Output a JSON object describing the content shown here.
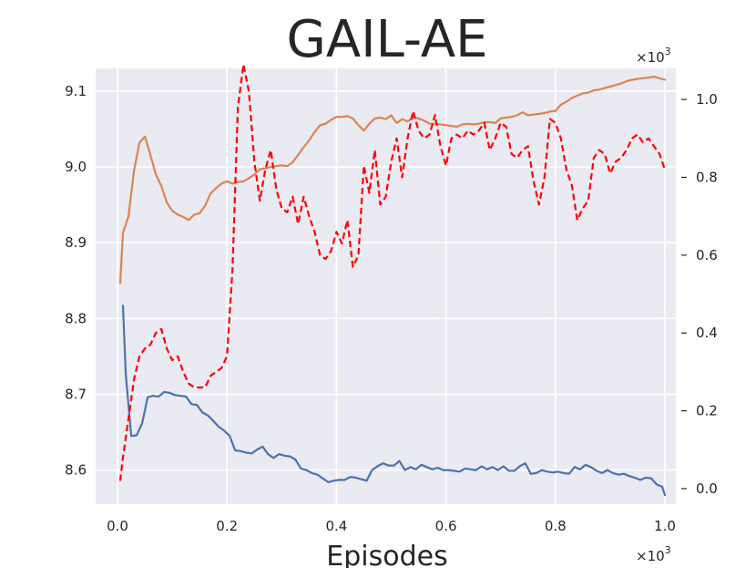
{
  "chart_data": {
    "type": "line",
    "title": "GAIL-AE",
    "xlabel": "Episodes",
    "x_multiplier": "×10",
    "y2_multiplier": "×10",
    "multiplier_exponent": "3",
    "xlim": [
      -0.04,
      1.02
    ],
    "ylim": [
      8.555,
      9.13
    ],
    "y2lim": [
      -0.04,
      1.08
    ],
    "xticks": [
      0.0,
      0.2,
      0.4,
      0.6,
      0.8,
      1.0
    ],
    "xtick_labels": [
      "0.0",
      "0.2",
      "0.4",
      "0.6",
      "0.8",
      "1.0"
    ],
    "yticks": [
      8.6,
      8.7,
      8.8,
      8.9,
      9.0,
      9.1
    ],
    "ytick_labels": [
      "8.6",
      "8.7",
      "8.8",
      "8.9",
      "9.0",
      "9.1"
    ],
    "y2ticks": [
      0.0,
      0.2,
      0.4,
      0.6,
      0.8,
      1.0
    ],
    "y2tick_labels": [
      "0.0",
      "0.2",
      "0.4",
      "0.6",
      "0.8",
      "1.0"
    ],
    "grid": true,
    "background": "#eaeaf2",
    "series": [
      {
        "color": "#4c72b0",
        "axis": "left",
        "style": "solid",
        "x": [
          0.01,
          0.015,
          0.025,
          0.035,
          0.045,
          0.055,
          0.065,
          0.075,
          0.085,
          0.095,
          0.105,
          0.115,
          0.125,
          0.135,
          0.145,
          0.155,
          0.165,
          0.175,
          0.185,
          0.195,
          0.205,
          0.215,
          0.225,
          0.235,
          0.245,
          0.255,
          0.265,
          0.275,
          0.285,
          0.295,
          0.305,
          0.315,
          0.325,
          0.335,
          0.345,
          0.355,
          0.365,
          0.375,
          0.385,
          0.395,
          0.405,
          0.415,
          0.425,
          0.435,
          0.445,
          0.455,
          0.465,
          0.475,
          0.485,
          0.495,
          0.505,
          0.515,
          0.525,
          0.535,
          0.545,
          0.555,
          0.565,
          0.575,
          0.585,
          0.595,
          0.605,
          0.615,
          0.625,
          0.635,
          0.645,
          0.655,
          0.665,
          0.675,
          0.685,
          0.695,
          0.705,
          0.715,
          0.725,
          0.735,
          0.745,
          0.755,
          0.765,
          0.775,
          0.785,
          0.795,
          0.805,
          0.815,
          0.825,
          0.835,
          0.845,
          0.855,
          0.865,
          0.875,
          0.885,
          0.895,
          0.905,
          0.915,
          0.925,
          0.935,
          0.945,
          0.955,
          0.965,
          0.975,
          0.985,
          0.995,
          1.0
        ],
        "y": [
          8.817,
          8.726,
          8.645,
          8.646,
          8.662,
          8.696,
          8.698,
          8.697,
          8.703,
          8.702,
          8.699,
          8.698,
          8.697,
          8.687,
          8.686,
          8.676,
          8.672,
          8.665,
          8.657,
          8.652,
          8.645,
          8.626,
          8.625,
          8.623,
          8.622,
          8.627,
          8.631,
          8.621,
          8.616,
          8.621,
          8.619,
          8.618,
          8.614,
          8.602,
          8.6,
          8.596,
          8.594,
          8.589,
          8.584,
          8.586,
          8.587,
          8.587,
          8.591,
          8.59,
          8.588,
          8.586,
          8.6,
          8.605,
          8.609,
          8.606,
          8.606,
          8.612,
          8.6,
          8.604,
          8.601,
          8.607,
          8.604,
          8.601,
          8.603,
          8.6,
          8.6,
          8.599,
          8.598,
          8.602,
          8.601,
          8.6,
          8.605,
          8.601,
          8.604,
          8.6,
          8.605,
          8.599,
          8.599,
          8.605,
          8.609,
          8.595,
          8.596,
          8.6,
          8.598,
          8.597,
          8.598,
          8.596,
          8.595,
          8.604,
          8.601,
          8.607,
          8.604,
          8.599,
          8.596,
          8.6,
          8.596,
          8.594,
          8.595,
          8.592,
          8.59,
          8.587,
          8.59,
          8.589,
          8.581,
          8.578,
          8.567
        ]
      },
      {
        "color": "#dd8452",
        "axis": "left",
        "style": "solid",
        "x": [
          0.005,
          0.01,
          0.02,
          0.03,
          0.04,
          0.05,
          0.06,
          0.07,
          0.08,
          0.09,
          0.1,
          0.11,
          0.12,
          0.13,
          0.14,
          0.15,
          0.16,
          0.17,
          0.18,
          0.19,
          0.2,
          0.21,
          0.22,
          0.23,
          0.24,
          0.25,
          0.26,
          0.27,
          0.28,
          0.29,
          0.3,
          0.31,
          0.32,
          0.33,
          0.34,
          0.35,
          0.36,
          0.37,
          0.38,
          0.39,
          0.4,
          0.41,
          0.42,
          0.43,
          0.44,
          0.45,
          0.46,
          0.47,
          0.48,
          0.49,
          0.5,
          0.51,
          0.52,
          0.53,
          0.54,
          0.55,
          0.56,
          0.57,
          0.58,
          0.59,
          0.6,
          0.61,
          0.62,
          0.63,
          0.64,
          0.65,
          0.66,
          0.67,
          0.68,
          0.69,
          0.7,
          0.71,
          0.72,
          0.73,
          0.74,
          0.75,
          0.76,
          0.77,
          0.78,
          0.79,
          0.8,
          0.81,
          0.82,
          0.83,
          0.84,
          0.85,
          0.86,
          0.87,
          0.88,
          0.89,
          0.9,
          0.91,
          0.92,
          0.93,
          0.94,
          0.95,
          0.96,
          0.97,
          0.98,
          0.99,
          1.0
        ],
        "y": [
          8.847,
          8.913,
          8.935,
          8.995,
          9.032,
          9.04,
          9.016,
          8.99,
          8.975,
          8.953,
          8.942,
          8.937,
          8.934,
          8.93,
          8.937,
          8.939,
          8.949,
          8.965,
          8.972,
          8.978,
          8.981,
          8.978,
          8.98,
          8.981,
          8.985,
          8.99,
          8.997,
          8.998,
          9.0,
          9.001,
          9.002,
          9.001,
          9.006,
          9.016,
          9.026,
          9.035,
          9.046,
          9.055,
          9.057,
          9.062,
          9.066,
          9.066,
          9.067,
          9.064,
          9.055,
          9.048,
          9.057,
          9.064,
          9.065,
          9.063,
          9.068,
          9.058,
          9.063,
          9.06,
          9.065,
          9.064,
          9.061,
          9.057,
          9.057,
          9.056,
          9.055,
          9.054,
          9.053,
          9.056,
          9.057,
          9.056,
          9.057,
          9.059,
          9.059,
          9.058,
          9.064,
          9.065,
          9.066,
          9.068,
          9.072,
          9.068,
          9.069,
          9.07,
          9.071,
          9.073,
          9.074,
          9.082,
          9.086,
          9.091,
          9.094,
          9.097,
          9.098,
          9.101,
          9.102,
          9.104,
          9.106,
          9.108,
          9.11,
          9.113,
          9.115,
          9.116,
          9.117,
          9.118,
          9.119,
          9.117,
          9.115
        ]
      },
      {
        "color": "#ff0000",
        "axis": "right",
        "style": "dashed",
        "x": [
          0.005,
          0.01,
          0.02,
          0.03,
          0.04,
          0.05,
          0.06,
          0.07,
          0.08,
          0.09,
          0.1,
          0.11,
          0.12,
          0.13,
          0.14,
          0.15,
          0.16,
          0.17,
          0.18,
          0.19,
          0.2,
          0.21,
          0.22,
          0.23,
          0.24,
          0.25,
          0.26,
          0.27,
          0.28,
          0.29,
          0.3,
          0.31,
          0.32,
          0.33,
          0.34,
          0.35,
          0.36,
          0.37,
          0.38,
          0.39,
          0.4,
          0.41,
          0.42,
          0.43,
          0.44,
          0.45,
          0.46,
          0.47,
          0.48,
          0.49,
          0.5,
          0.51,
          0.52,
          0.53,
          0.54,
          0.55,
          0.56,
          0.57,
          0.58,
          0.59,
          0.6,
          0.61,
          0.62,
          0.63,
          0.64,
          0.65,
          0.66,
          0.67,
          0.68,
          0.69,
          0.7,
          0.71,
          0.72,
          0.73,
          0.74,
          0.75,
          0.76,
          0.77,
          0.78,
          0.79,
          0.8,
          0.81,
          0.82,
          0.83,
          0.84,
          0.85,
          0.86,
          0.87,
          0.88,
          0.89,
          0.9,
          0.91,
          0.92,
          0.93,
          0.94,
          0.95,
          0.96,
          0.97,
          0.98,
          0.99,
          1.0
        ],
        "y": [
          0.02,
          0.08,
          0.18,
          0.28,
          0.34,
          0.36,
          0.37,
          0.4,
          0.41,
          0.36,
          0.33,
          0.34,
          0.3,
          0.27,
          0.26,
          0.26,
          0.26,
          0.29,
          0.3,
          0.31,
          0.34,
          0.56,
          0.98,
          1.09,
          1.02,
          0.84,
          0.74,
          0.82,
          0.87,
          0.77,
          0.72,
          0.71,
          0.75,
          0.68,
          0.75,
          0.7,
          0.66,
          0.6,
          0.59,
          0.61,
          0.66,
          0.63,
          0.69,
          0.57,
          0.6,
          0.83,
          0.76,
          0.87,
          0.73,
          0.75,
          0.84,
          0.9,
          0.8,
          0.9,
          0.97,
          0.92,
          0.9,
          0.91,
          0.96,
          0.88,
          0.83,
          0.9,
          0.91,
          0.9,
          0.92,
          0.91,
          0.92,
          0.94,
          0.87,
          0.9,
          0.94,
          0.93,
          0.86,
          0.85,
          0.87,
          0.88,
          0.79,
          0.73,
          0.8,
          0.95,
          0.94,
          0.9,
          0.82,
          0.78,
          0.69,
          0.72,
          0.74,
          0.85,
          0.87,
          0.86,
          0.81,
          0.84,
          0.85,
          0.87,
          0.9,
          0.91,
          0.89,
          0.9,
          0.88,
          0.86,
          0.82
        ]
      }
    ]
  }
}
